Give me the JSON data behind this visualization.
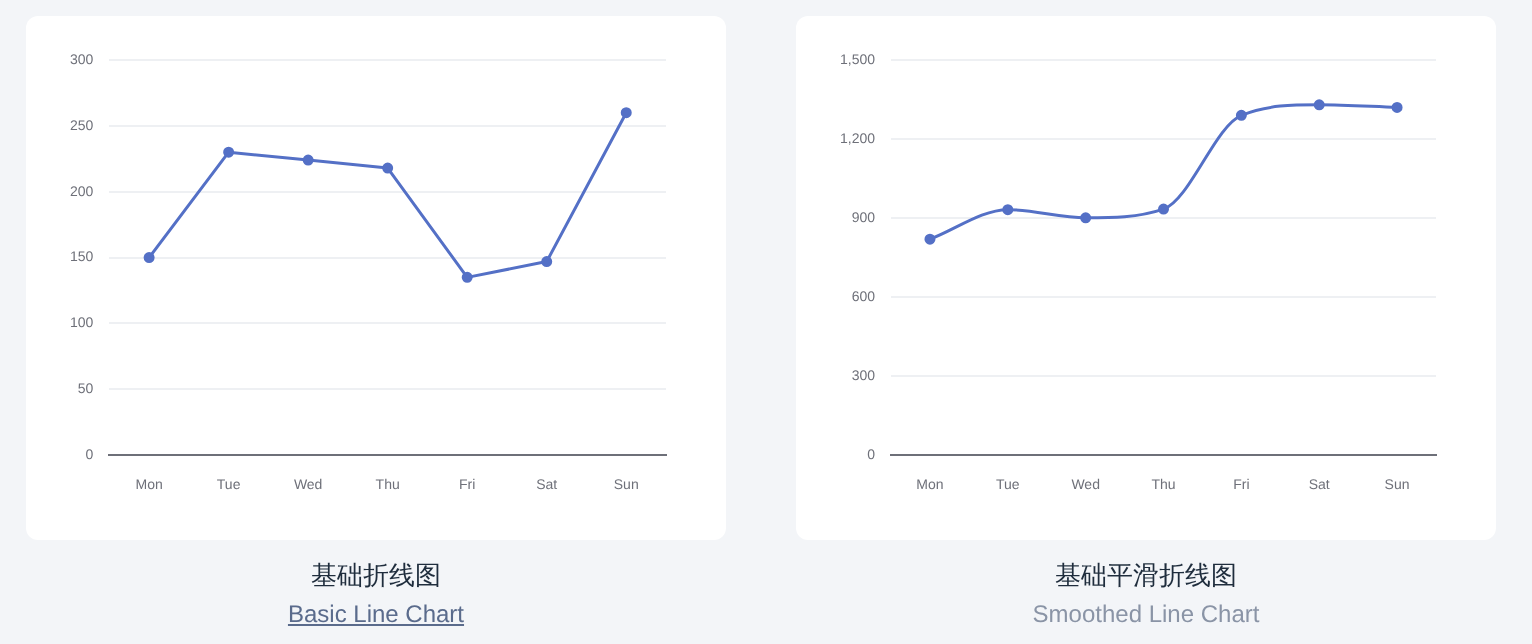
{
  "chart_data": [
    {
      "type": "line",
      "title": "基础折线图",
      "subtitle": "Basic Line Chart",
      "categories": [
        "Mon",
        "Tue",
        "Wed",
        "Thu",
        "Fri",
        "Sat",
        "Sun"
      ],
      "series": [
        {
          "color": "#5470c6",
          "values": [
            150,
            230,
            224,
            218,
            135,
            147,
            260
          ]
        }
      ],
      "ylim": [
        0,
        300
      ],
      "yticks": [
        0,
        50,
        100,
        150,
        200,
        250,
        300
      ],
      "grid": "y",
      "marker": "circle",
      "line_style": "solid"
    },
    {
      "type": "line",
      "title": "基础平滑折线图",
      "subtitle": "Smoothed Line Chart",
      "categories": [
        "Mon",
        "Tue",
        "Wed",
        "Thu",
        "Fri",
        "Sat",
        "Sun"
      ],
      "series": [
        {
          "color": "#5470c6",
          "values": [
            820,
            932,
            901,
            934,
            1290,
            1330,
            1320
          ]
        }
      ],
      "ylim": [
        0,
        1500
      ],
      "yticks": [
        0,
        {
          "value": 300,
          "label": "300"
        },
        {
          "value": 600,
          "label": "600"
        },
        {
          "value": 900,
          "label": "900"
        },
        {
          "value": 1200,
          "label": "1,200"
        },
        {
          "value": 1500,
          "label": "1,500"
        }
      ],
      "grid": "y",
      "marker": "circle",
      "line_style": "solid"
    }
  ]
}
